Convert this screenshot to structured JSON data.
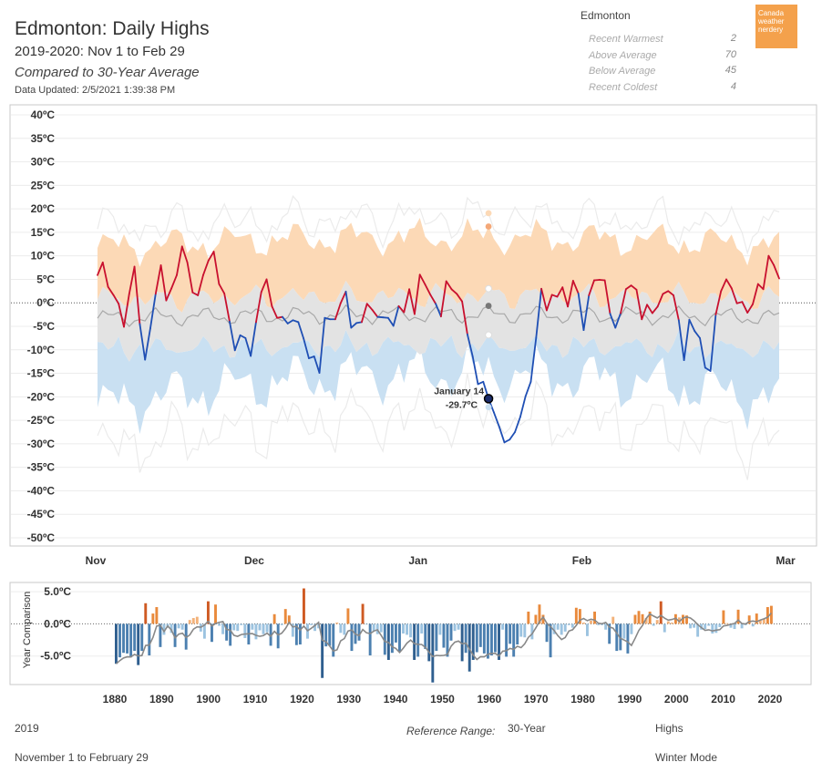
{
  "header": {
    "title": "Edmonton: Daily Highs",
    "subtitle": "2019-2020: Nov 1 to Feb 29",
    "comparison": "Compared to 30-Year Average",
    "updated": "Data Updated: 2/5/2021 1:39:38 PM"
  },
  "stats": {
    "city": "Edmonton",
    "rows": [
      {
        "label": "Recent Warmest",
        "value": "2"
      },
      {
        "label": "Above Average",
        "value": "70"
      },
      {
        "label": "Below Average",
        "value": "45"
      },
      {
        "label": "Recent Coldest",
        "value": "4"
      }
    ]
  },
  "logo": {
    "line1": "Canada",
    "line2": "weather",
    "line3": "nerdery",
    "color": "#f4a14c"
  },
  "footer": {
    "season": "2019",
    "range_label": "Reference Range:",
    "range_value": "30-Year",
    "metric": "Highs",
    "period": "November 1 to February 29",
    "mode": "Winter Mode"
  },
  "chart_data": [
    {
      "type": "line",
      "ylim": [
        -50,
        40
      ],
      "yticks": [
        40,
        35,
        30,
        25,
        20,
        15,
        10,
        5,
        0,
        -5,
        -10,
        -15,
        -20,
        -25,
        -30,
        -35,
        -40,
        -45,
        -50
      ],
      "y_unit": "ºC",
      "x_month_labels": [
        "Nov",
        "Dec",
        "Jan",
        "Feb",
        "Mar"
      ],
      "x_month_day_index": [
        0,
        30,
        61,
        92,
        121
      ],
      "colors": {
        "above": "#c8102e",
        "below": "#1f4fb4",
        "warm_band": "#fcd9b6",
        "cold_band": "#c9e0f2",
        "normal_band": "#e3e3e3",
        "avg_line": "#a8a8a8"
      },
      "annotation": {
        "day": 74,
        "date": "January 14",
        "value": "-29.7ºC"
      },
      "series": [
        {
          "values": [
            5.9,
            8.6,
            3.4,
            1.7,
            -0.2,
            -5.1,
            1.9,
            7.7,
            -4.5,
            -12.1,
            -5.4,
            1.9,
            8.0,
            0.5,
            3.1,
            5.9,
            12.0,
            8.6,
            2.2,
            1.6,
            5.9,
            9.0,
            10.9,
            4.0,
            2.0,
            -4.0,
            -10.1,
            -6.9,
            -7.5,
            -11.3,
            -4.1,
            2.3,
            5.0,
            -0.7,
            -3.2,
            -3.0,
            -4.4,
            -3.7,
            -4.1,
            -7.6,
            -11.8,
            -11.4,
            -14.9,
            -3.2,
            -3.5,
            -3.5,
            -0.1,
            2.4,
            -5.3,
            -4.3,
            -4.1,
            -0.2,
            -1.5,
            -3.0,
            -3.1,
            -3.2,
            -4.9,
            -0.7,
            -2.0,
            2.9,
            -2.4,
            6.0,
            3.9,
            1.7,
            -0.2,
            -2.9,
            4.6,
            2.9,
            1.9,
            0.3,
            -6.7,
            -11.4,
            -17.3,
            -16.8,
            -20.4,
            -23.3,
            -26.3,
            -29.7,
            -29.1,
            -27.5,
            -24.3,
            -19.9,
            -16.8,
            -7.5,
            3.0,
            -1.6,
            1.7,
            1.3,
            3.3,
            -0.8,
            4.7,
            2.0,
            -5.8,
            1.6,
            4.8,
            4.9,
            4.8,
            -2.3,
            -5.3,
            -2.2,
            2.9,
            3.7,
            2.8,
            -3.5,
            -0.4,
            -2.2,
            -0.8,
            1.9,
            2.5,
            1.6,
            -3.7,
            -12.2,
            -3.6,
            -6.0,
            -7.5,
            -13.8,
            -14.5,
            -2.5,
            2.5,
            5.0,
            3.1,
            -0.1,
            0.2,
            -2.1,
            -0.3,
            4.0,
            2.9,
            10.0,
            8.0,
            5.2
          ]
        }
      ]
    },
    {
      "type": "bar",
      "xlabel": "",
      "ylabel": "Year Comparison",
      "ylim": [
        -9,
        6
      ],
      "yticks": [
        "5.0ºC",
        "0.0ºC",
        "-5.0ºC"
      ],
      "x_tick_years": [
        1880,
        1890,
        1900,
        1910,
        1920,
        1930,
        1940,
        1950,
        1960,
        1970,
        1980,
        1990,
        2000,
        2010,
        2020
      ],
      "x_range": [
        1880,
        2020
      ],
      "categories_start_year": 1880,
      "values": [
        -6.2,
        -5.2,
        -4.5,
        -4.6,
        -5.2,
        -4.2,
        -6.4,
        -4.2,
        3.2,
        -4.9,
        1.6,
        2.6,
        -3.6,
        -1.7,
        -0.6,
        -1.4,
        -3.6,
        -0.7,
        -0.9,
        -4.0,
        0.6,
        0.9,
        1.1,
        -1.2,
        -2.3,
        3.5,
        -2.8,
        3.0,
        -0.3,
        -1.6,
        -2.6,
        -3.4,
        -1.0,
        -1.1,
        -0.2,
        -2.2,
        -3.2,
        -0.9,
        -2.4,
        -1.0,
        -1.6,
        -1.3,
        -3.4,
        1.5,
        -3.8,
        -0.2,
        2.3,
        1.3,
        -2.0,
        -3.3,
        -3.2,
        5.5,
        -2.3,
        -0.2,
        -1.1,
        -0.7,
        -8.4,
        -3.5,
        -3.4,
        -5.1,
        0.2,
        -1.4,
        -1.7,
        2.4,
        -4.2,
        -3.1,
        -2.6,
        3.1,
        -0.1,
        -4.9,
        -1.1,
        -1.6,
        -1.3,
        -4.8,
        -5.6,
        -4.5,
        -2.9,
        -4.4,
        -1.5,
        -1.7,
        -2.1,
        -5.6,
        -5.1,
        -1.5,
        -3.9,
        -5.8,
        -9.1,
        -4.2,
        -1.7,
        -3.7,
        -5.1,
        -2.6,
        -1.1,
        -0.9,
        -5.8,
        -4.5,
        -7.4,
        -5.6,
        -4.4,
        -3.6,
        -4.6,
        -5.4,
        -4.9,
        -4.4,
        -5.6,
        -0.9,
        -5.1,
        -3.1,
        -5.1,
        -3.2,
        -2.0,
        -2.1,
        1.9,
        -2.4,
        1.4,
        3.0,
        1.4,
        -2.8,
        -5.2,
        -1.6,
        -0.9,
        -1.7,
        -1.2,
        -0.2,
        -0.6,
        2.5,
        2.3,
        0.2,
        -1.9,
        0.5,
        1.9,
        -0.2,
        -0.2,
        -0.9,
        -3.1,
        1.1,
        -4.2,
        -4.1,
        -2.3,
        -4.6,
        -1.6,
        1.4,
        2.0,
        1.5,
        0.9,
        1.9,
        -0.3,
        0.6,
        3.5,
        -1.3,
        0.4,
        0.2,
        1.5,
        1.0,
        1.4,
        1.3,
        -0.7,
        -0.6,
        -2.0,
        -0.9,
        -0.8,
        -0.3,
        -1.5,
        -1.4,
        -0.5,
        2.1,
        0.1,
        -0.6,
        -0.8,
        2.2,
        -0.7,
        -0.2,
        1.3,
        -0.4,
        1.6,
        0.6,
        0.8,
        2.6,
        2.8
      ],
      "colors": {
        "warm": "#e3802e",
        "cold": "#4a7eb0",
        "trend": "#888888"
      }
    }
  ]
}
